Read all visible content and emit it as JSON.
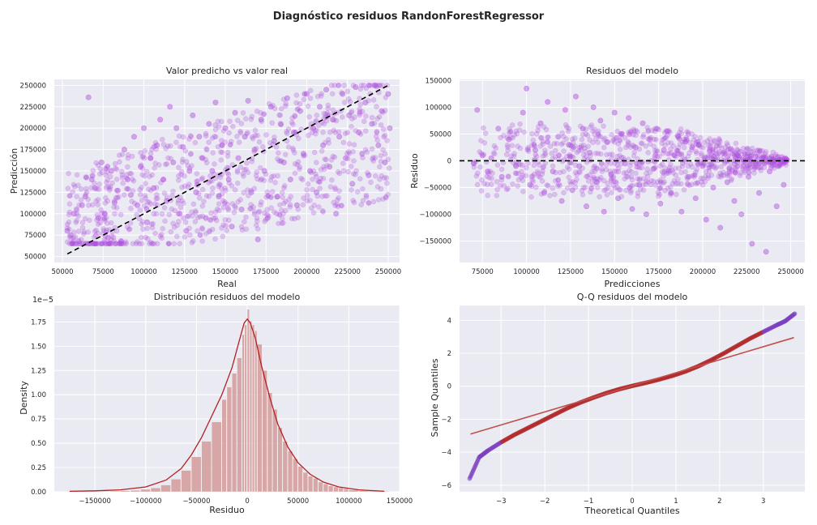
{
  "figure": {
    "title": "Diagnóstico residuos RandonForestRegressor",
    "background": "#ffffff",
    "panel_background": "#eaeaf2",
    "grid_color": "#ffffff"
  },
  "chart_data": [
    {
      "type": "scatter",
      "title": "Valor predicho vs valor real",
      "xlabel": "Real",
      "ylabel": "Predicción",
      "xlim": [
        45000,
        257000
      ],
      "ylim": [
        43000,
        257000
      ],
      "xticks": [
        50000,
        75000,
        100000,
        125000,
        150000,
        175000,
        200000,
        225000,
        250000
      ],
      "yticks": [
        50000,
        75000,
        100000,
        125000,
        150000,
        175000,
        200000,
        225000,
        250000
      ],
      "grid": true,
      "point_color": "#9b59d0",
      "edge_color": "#e040fb",
      "reference_line": {
        "style": "dashed",
        "color": "#000000",
        "from": [
          53000,
          53000
        ],
        "to": [
          250000,
          250000
        ]
      },
      "points": [
        [
          53000,
          80000
        ],
        [
          55000,
          75000
        ],
        [
          57000,
          100000
        ],
        [
          60000,
          68000
        ],
        [
          62000,
          110000
        ],
        [
          64000,
          120000
        ],
        [
          66000,
          236000
        ],
        [
          68000,
          140000
        ],
        [
          70000,
          130000
        ],
        [
          72000,
          95000
        ],
        [
          74000,
          160000
        ],
        [
          76000,
          100000
        ],
        [
          78000,
          72000
        ],
        [
          80000,
          150000
        ],
        [
          82000,
          113000
        ],
        [
          84000,
          127000
        ],
        [
          86000,
          68000
        ],
        [
          88000,
          175000
        ],
        [
          90000,
          140000
        ],
        [
          92000,
          122000
        ],
        [
          94000,
          190000
        ],
        [
          96000,
          110000
        ],
        [
          98000,
          155000
        ],
        [
          100000,
          200000
        ],
        [
          102000,
          90000
        ],
        [
          104000,
          165000
        ],
        [
          106000,
          130000
        ],
        [
          108000,
          180000
        ],
        [
          110000,
          210000
        ],
        [
          112000,
          140000
        ],
        [
          114000,
          115000
        ],
        [
          116000,
          225000
        ],
        [
          118000,
          160000
        ],
        [
          120000,
          200000
        ],
        [
          122000,
          100000
        ],
        [
          124000,
          178000
        ],
        [
          126000,
          80000
        ],
        [
          128000,
          150000
        ],
        [
          130000,
          215000
        ],
        [
          132000,
          125000
        ],
        [
          134000,
          190000
        ],
        [
          136000,
          165000
        ],
        [
          138000,
          95000
        ],
        [
          140000,
          205000
        ],
        [
          142000,
          150000
        ],
        [
          144000,
          230000
        ],
        [
          146000,
          120000
        ],
        [
          148000,
          180000
        ],
        [
          150000,
          200000
        ],
        [
          152000,
          140000
        ],
        [
          154000,
          85000
        ],
        [
          156000,
          218000
        ],
        [
          158000,
          165000
        ],
        [
          160000,
          105000
        ],
        [
          162000,
          190000
        ],
        [
          164000,
          232000
        ],
        [
          166000,
          125000
        ],
        [
          168000,
          175000
        ],
        [
          170000,
          70000
        ],
        [
          172000,
          210000
        ],
        [
          174000,
          150000
        ],
        [
          176000,
          95000
        ],
        [
          178000,
          225000
        ],
        [
          180000,
          185000
        ],
        [
          182000,
          120000
        ],
        [
          184000,
          205000
        ],
        [
          186000,
          160000
        ],
        [
          188000,
          235000
        ],
        [
          190000,
          140000
        ],
        [
          192000,
          195000
        ],
        [
          194000,
          110000
        ],
        [
          196000,
          220000
        ],
        [
          198000,
          170000
        ],
        [
          200000,
          240000
        ],
        [
          202000,
          150000
        ],
        [
          204000,
          200000
        ],
        [
          206000,
          125000
        ],
        [
          208000,
          225000
        ],
        [
          210000,
          180000
        ],
        [
          212000,
          245000
        ],
        [
          214000,
          155000
        ],
        [
          216000,
          210000
        ],
        [
          218000,
          100000
        ],
        [
          220000,
          190000
        ],
        [
          222000,
          240000
        ],
        [
          224000,
          165000
        ],
        [
          226000,
          215000
        ],
        [
          228000,
          135000
        ],
        [
          230000,
          248000
        ],
        [
          232000,
          195000
        ],
        [
          234000,
          170000
        ],
        [
          236000,
          230000
        ],
        [
          238000,
          145000
        ],
        [
          240000,
          205000
        ],
        [
          242000,
          250000
        ],
        [
          244000,
          180000
        ],
        [
          246000,
          220000
        ],
        [
          248000,
          160000
        ],
        [
          250000,
          240000
        ],
        [
          251000,
          200000
        ]
      ]
    },
    {
      "type": "scatter",
      "title": "Residuos del modelo",
      "xlabel": "Predicciones",
      "ylabel": "Residuo",
      "xlim": [
        62000,
        258000
      ],
      "ylim": [
        -190000,
        152000
      ],
      "xticks": [
        75000,
        100000,
        125000,
        150000,
        175000,
        200000,
        225000,
        250000
      ],
      "yticks": [
        -150000,
        -100000,
        -50000,
        0,
        50000,
        100000,
        150000
      ],
      "grid": true,
      "point_color": "#9b59d0",
      "edge_color": "#e040fb",
      "reference_line": {
        "style": "dashed",
        "color": "#000000",
        "y": 0
      },
      "points": [
        [
          70000,
          -5000
        ],
        [
          72000,
          95000
        ],
        [
          75000,
          10000
        ],
        [
          78000,
          -20000
        ],
        [
          80000,
          5000
        ],
        [
          84000,
          60000
        ],
        [
          86000,
          -30000
        ],
        [
          90000,
          40000
        ],
        [
          94000,
          -10000
        ],
        [
          98000,
          90000
        ],
        [
          100000,
          135000
        ],
        [
          102000,
          -45000
        ],
        [
          105000,
          20000
        ],
        [
          108000,
          70000
        ],
        [
          110000,
          -60000
        ],
        [
          112000,
          110000
        ],
        [
          115000,
          -20000
        ],
        [
          118000,
          45000
        ],
        [
          120000,
          -75000
        ],
        [
          122000,
          95000
        ],
        [
          124000,
          30000
        ],
        [
          126000,
          -55000
        ],
        [
          128000,
          120000
        ],
        [
          130000,
          -10000
        ],
        [
          132000,
          60000
        ],
        [
          134000,
          -85000
        ],
        [
          136000,
          15000
        ],
        [
          138000,
          100000
        ],
        [
          140000,
          -40000
        ],
        [
          142000,
          75000
        ],
        [
          144000,
          -95000
        ],
        [
          146000,
          35000
        ],
        [
          148000,
          -25000
        ],
        [
          150000,
          90000
        ],
        [
          152000,
          -70000
        ],
        [
          154000,
          50000
        ],
        [
          156000,
          -5000
        ],
        [
          158000,
          80000
        ],
        [
          160000,
          -90000
        ],
        [
          162000,
          25000
        ],
        [
          164000,
          -45000
        ],
        [
          166000,
          70000
        ],
        [
          168000,
          -100000
        ],
        [
          170000,
          40000
        ],
        [
          172000,
          -15000
        ],
        [
          174000,
          60000
        ],
        [
          176000,
          -80000
        ],
        [
          178000,
          20000
        ],
        [
          180000,
          55000
        ],
        [
          182000,
          -60000
        ],
        [
          184000,
          10000
        ],
        [
          186000,
          45000
        ],
        [
          188000,
          -95000
        ],
        [
          190000,
          35000
        ],
        [
          192000,
          -30000
        ],
        [
          194000,
          25000
        ],
        [
          196000,
          -70000
        ],
        [
          198000,
          30000
        ],
        [
          200000,
          -10000
        ],
        [
          202000,
          -110000
        ],
        [
          204000,
          20000
        ],
        [
          206000,
          -50000
        ],
        [
          208000,
          28000
        ],
        [
          210000,
          -125000
        ],
        [
          212000,
          15000
        ],
        [
          214000,
          -40000
        ],
        [
          216000,
          22000
        ],
        [
          218000,
          -75000
        ],
        [
          220000,
          10000
        ],
        [
          222000,
          -100000
        ],
        [
          224000,
          12000
        ],
        [
          226000,
          -30000
        ],
        [
          228000,
          -155000
        ],
        [
          230000,
          8000
        ],
        [
          232000,
          -60000
        ],
        [
          234000,
          5000
        ],
        [
          236000,
          -170000
        ],
        [
          238000,
          -20000
        ],
        [
          240000,
          3000
        ],
        [
          242000,
          -85000
        ],
        [
          244000,
          2000
        ],
        [
          246000,
          -45000
        ],
        [
          248000,
          1000
        ]
      ]
    },
    {
      "type": "histogram",
      "title": "Distribución residuos del modelo",
      "xlabel": "Residuo",
      "ylabel": "Density",
      "offset_label": "1e−5",
      "xlim": [
        -190000,
        150000
      ],
      "ylim": [
        0,
        1.92
      ],
      "xticks": [
        -150000,
        -100000,
        -50000,
        0,
        50000,
        100000,
        150000
      ],
      "yticks": [
        0.0,
        0.25,
        0.5,
        0.75,
        1.0,
        1.25,
        1.5,
        1.75
      ],
      "ytick_labels": [
        "0.00",
        "0.25",
        "0.50",
        "0.75",
        "1.00",
        "1.25",
        "1.50",
        "1.75"
      ],
      "grid": true,
      "bar_color": "#d49b9b",
      "kde_color": "#b22222",
      "bins": [
        [
          -175000,
          0.005
        ],
        [
          -165000,
          0.005
        ],
        [
          -155000,
          0.005
        ],
        [
          -145000,
          0.006
        ],
        [
          -135000,
          0.008
        ],
        [
          -125000,
          0.01
        ],
        [
          -115000,
          0.015
        ],
        [
          -105000,
          0.025
        ],
        [
          -95000,
          0.04
        ],
        [
          -85000,
          0.07
        ],
        [
          -75000,
          0.13
        ],
        [
          -65000,
          0.22
        ],
        [
          -55000,
          0.36
        ],
        [
          -45000,
          0.52
        ],
        [
          -35000,
          0.72
        ],
        [
          -25000,
          0.95
        ],
        [
          -20000,
          1.08
        ],
        [
          -15000,
          1.22
        ],
        [
          -10000,
          1.38
        ],
        [
          -5000,
          1.62
        ],
        [
          -2500,
          1.72
        ],
        [
          0,
          1.88
        ],
        [
          2500,
          1.76
        ],
        [
          5000,
          1.72
        ],
        [
          7500,
          1.66
        ],
        [
          10000,
          1.52
        ],
        [
          15000,
          1.25
        ],
        [
          20000,
          1.02
        ],
        [
          25000,
          0.85
        ],
        [
          30000,
          0.66
        ],
        [
          35000,
          0.52
        ],
        [
          40000,
          0.42
        ],
        [
          45000,
          0.34
        ],
        [
          50000,
          0.26
        ],
        [
          55000,
          0.2
        ],
        [
          60000,
          0.16
        ],
        [
          65000,
          0.14
        ],
        [
          70000,
          0.1
        ],
        [
          75000,
          0.08
        ],
        [
          80000,
          0.06
        ],
        [
          85000,
          0.05
        ],
        [
          90000,
          0.04
        ],
        [
          95000,
          0.03
        ],
        [
          100000,
          0.02
        ],
        [
          110000,
          0.012
        ],
        [
          120000,
          0.008
        ],
        [
          130000,
          0.005
        ]
      ],
      "kde": [
        [
          -175000,
          0.005
        ],
        [
          -150000,
          0.01
        ],
        [
          -125000,
          0.02
        ],
        [
          -100000,
          0.05
        ],
        [
          -80000,
          0.12
        ],
        [
          -65000,
          0.24
        ],
        [
          -55000,
          0.38
        ],
        [
          -45000,
          0.56
        ],
        [
          -35000,
          0.78
        ],
        [
          -25000,
          1.0
        ],
        [
          -15000,
          1.28
        ],
        [
          -8000,
          1.55
        ],
        [
          -3000,
          1.74
        ],
        [
          0,
          1.78
        ],
        [
          3000,
          1.74
        ],
        [
          8000,
          1.58
        ],
        [
          14000,
          1.3
        ],
        [
          22000,
          0.98
        ],
        [
          30000,
          0.7
        ],
        [
          40000,
          0.46
        ],
        [
          50000,
          0.3
        ],
        [
          62000,
          0.18
        ],
        [
          75000,
          0.1
        ],
        [
          90000,
          0.05
        ],
        [
          110000,
          0.02
        ],
        [
          135000,
          0.005
        ]
      ]
    },
    {
      "type": "scatter",
      "title": "Q-Q residuos del modelo",
      "xlabel": "Theoretical Quantiles",
      "ylabel": "Sample Quantiles",
      "xlim": [
        -3.95,
        3.95
      ],
      "ylim": [
        -6.4,
        4.9
      ],
      "xticks": [
        -3,
        -2,
        -1,
        0,
        1,
        2,
        3
      ],
      "yticks": [
        -6,
        -4,
        -2,
        0,
        2,
        4
      ],
      "grid": true,
      "point_color": "#7b3fbf",
      "dense_color": "#b02a2a",
      "reference_line": {
        "style": "solid",
        "color": "#c0504d",
        "from": [
          -3.7,
          -2.9
        ],
        "to": [
          3.7,
          2.95
        ]
      },
      "qq_curve": [
        [
          -3.72,
          -5.6
        ],
        [
          -3.5,
          -4.3
        ],
        [
          -3.3,
          -3.9
        ],
        [
          -3.0,
          -3.4
        ],
        [
          -2.7,
          -2.95
        ],
        [
          -2.4,
          -2.55
        ],
        [
          -2.1,
          -2.15
        ],
        [
          -1.8,
          -1.75
        ],
        [
          -1.5,
          -1.35
        ],
        [
          -1.2,
          -1.0
        ],
        [
          -0.9,
          -0.7
        ],
        [
          -0.6,
          -0.42
        ],
        [
          -0.3,
          -0.18
        ],
        [
          0.0,
          0.02
        ],
        [
          0.3,
          0.2
        ],
        [
          0.6,
          0.4
        ],
        [
          0.9,
          0.62
        ],
        [
          1.2,
          0.88
        ],
        [
          1.5,
          1.2
        ],
        [
          1.8,
          1.58
        ],
        [
          2.1,
          2.0
        ],
        [
          2.4,
          2.45
        ],
        [
          2.7,
          2.9
        ],
        [
          3.0,
          3.3
        ],
        [
          3.3,
          3.7
        ],
        [
          3.5,
          3.95
        ],
        [
          3.72,
          4.4
        ]
      ]
    }
  ]
}
